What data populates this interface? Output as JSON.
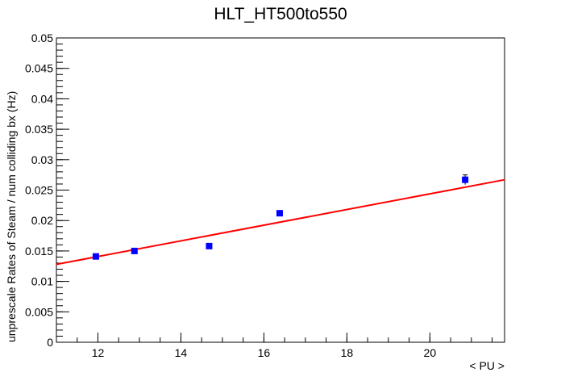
{
  "chart_data": {
    "type": "scatter",
    "title": "HLT_HT500to550",
    "xlabel": "< PU >",
    "ylabel": "unprescale Rates of Steam / num colliding bx (Hz)",
    "xlim": [
      11.0,
      21.8
    ],
    "ylim": [
      0,
      0.05
    ],
    "x_ticks": [
      12,
      14,
      16,
      18,
      20
    ],
    "x_tick_labels": [
      "12",
      "14",
      "16",
      "18",
      "20"
    ],
    "y_ticks": [
      0,
      0.005,
      0.01,
      0.015,
      0.02,
      0.025,
      0.03,
      0.035,
      0.04,
      0.045,
      0.05
    ],
    "y_tick_labels": [
      "0",
      "0.005",
      "0.01",
      "0.015",
      "0.02",
      "0.025",
      "0.03",
      "0.035",
      "0.04",
      "0.045",
      "0.05"
    ],
    "grid": false,
    "series": [
      {
        "type": "scatter",
        "color": "#0000ff",
        "marker": "square",
        "x": [
          11.95,
          12.88,
          14.68,
          16.38,
          20.85
        ],
        "y": [
          0.0141,
          0.015,
          0.0158,
          0.0212,
          0.0267
        ],
        "yerr": [
          0.0003,
          0.0003,
          0.0003,
          0.0004,
          0.0008
        ]
      },
      {
        "type": "line",
        "color": "#ff0000",
        "x": [
          11.0,
          21.8
        ],
        "y": [
          0.0128,
          0.0267
        ]
      }
    ]
  }
}
